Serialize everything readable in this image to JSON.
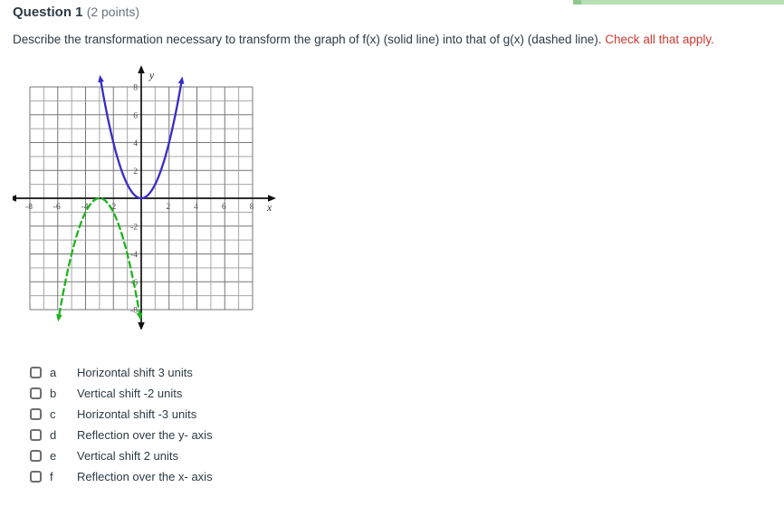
{
  "top_bar": {
    "color": "#b6dfb3",
    "cap_color": "#8fc98b"
  },
  "header": {
    "title": "Question 1",
    "points": "(2 points)"
  },
  "prompt": {
    "text": "Describe the transformation necessary to transform the graph of f(x) (solid line) into that of g(x) (dashed line). ",
    "highlight": "Check all that apply.",
    "highlight_color": "#cf3a32"
  },
  "chart_data": {
    "type": "line",
    "title": "",
    "xlabel": "x",
    "ylabel": "y",
    "xlim": [
      -8,
      8
    ],
    "ylim": [
      -8,
      8
    ],
    "grid_step": 1,
    "tick_step": 2,
    "x_tick_labels": [
      -8,
      -6,
      -4,
      -2,
      2,
      4,
      6,
      8
    ],
    "y_tick_labels": [
      -8,
      -6,
      -4,
      -2,
      2,
      4,
      6,
      8
    ],
    "grid_color_minor": "#a6a6a6",
    "grid_color_major": "#777777",
    "axis_color": "#111111",
    "tick_label_color": "#4a4a4a",
    "series": [
      {
        "name": "f(x)",
        "equation": "f(x) = x^2",
        "style": "solid",
        "color": "#382cc8",
        "vertex": [
          0,
          0
        ],
        "a": 1,
        "points": [
          [
            -2,
            4
          ],
          [
            -1,
            1
          ],
          [
            0,
            0
          ],
          [
            1,
            1
          ],
          [
            2,
            4
          ]
        ]
      },
      {
        "name": "g(x)",
        "equation": "g(x) = -(x+3)^2",
        "style": "dashed",
        "color": "#1db31d",
        "vertex": [
          -3,
          0
        ],
        "a": -1,
        "points": [
          [
            -5,
            -4
          ],
          [
            -4,
            -1
          ],
          [
            -3,
            0
          ],
          [
            -2,
            -1
          ],
          [
            -1,
            -4
          ]
        ]
      }
    ]
  },
  "options": [
    {
      "letter": "a",
      "label": "Horizontal shift 3 units",
      "checked": false
    },
    {
      "letter": "b",
      "label": "Vertical shift -2 units",
      "checked": false
    },
    {
      "letter": "c",
      "label": "Horizontal shift -3 units",
      "checked": false
    },
    {
      "letter": "d",
      "label": "Reflection over the y- axis",
      "checked": false
    },
    {
      "letter": "e",
      "label": "Vertical shift 2 units",
      "checked": false
    },
    {
      "letter": "f",
      "label": "Reflection over the x- axis",
      "checked": false
    }
  ]
}
